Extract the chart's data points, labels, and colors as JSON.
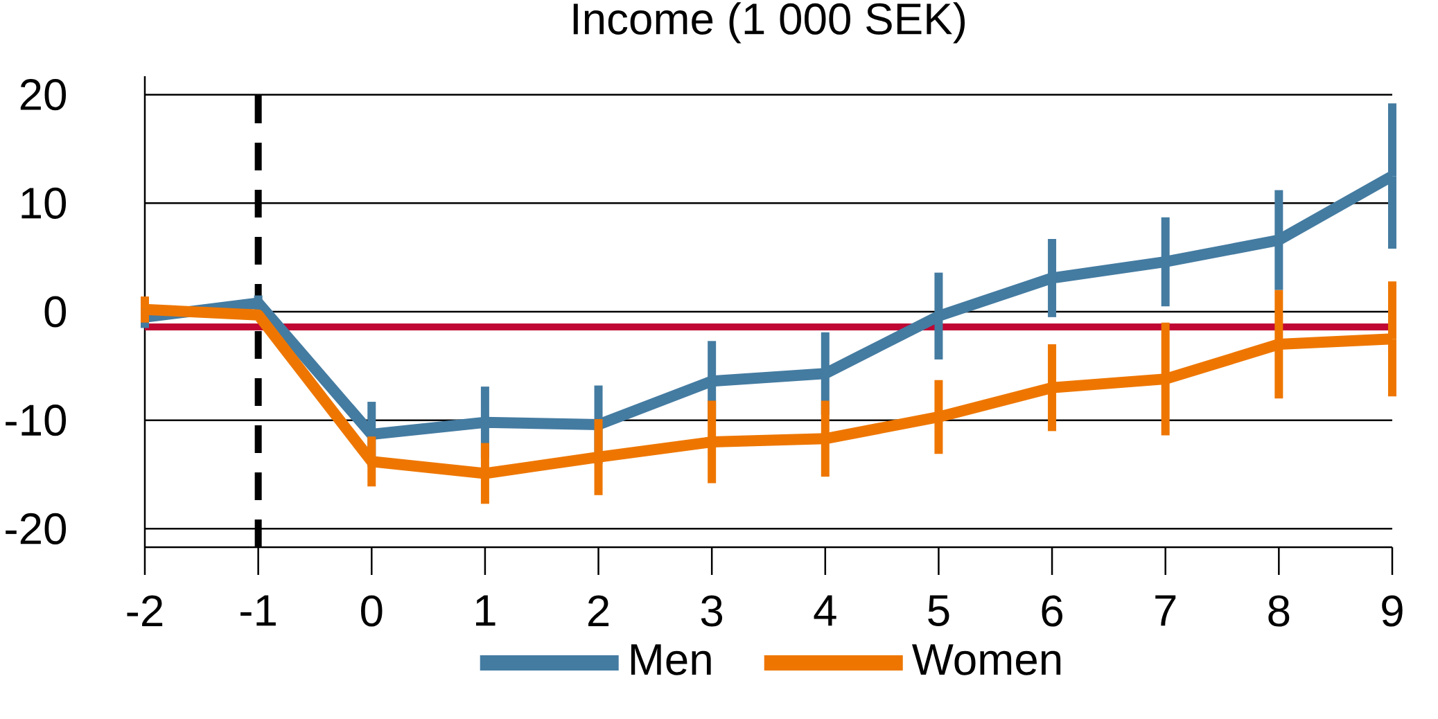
{
  "chart_data": {
    "type": "line",
    "title": "Income (1 000 SEK)",
    "x": [
      -2,
      -1,
      0,
      1,
      2,
      3,
      4,
      5,
      6,
      7,
      8,
      9
    ],
    "series": [
      {
        "name": "Men",
        "color": "#447ba1",
        "values": [
          -0.5,
          0.8,
          -11.3,
          -10.2,
          -10.4,
          -6.4,
          -5.7,
          -0.4,
          3.1,
          4.6,
          6.6,
          12.5
        ],
        "errors": [
          1.0,
          0.7,
          3.0,
          3.3,
          3.6,
          3.7,
          3.8,
          4.0,
          3.6,
          4.1,
          4.6,
          6.7
        ]
      },
      {
        "name": "Women",
        "color": "#ee7600",
        "values": [
          0.2,
          -0.3,
          -13.8,
          -14.9,
          -13.4,
          -12.0,
          -11.7,
          -9.7,
          -7.0,
          -6.2,
          -3.0,
          -2.5
        ],
        "errors": [
          1.2,
          null,
          2.3,
          2.8,
          3.5,
          3.8,
          3.5,
          3.4,
          4.0,
          5.2,
          5.0,
          5.3
        ]
      }
    ],
    "xlim": [
      -2,
      9
    ],
    "ylim": [
      -21.7,
      21.7
    ],
    "xticks": [
      -2,
      -1,
      0,
      1,
      2,
      3,
      4,
      5,
      6,
      7,
      8,
      9
    ],
    "yticks": [
      -20,
      -10,
      0,
      10,
      20
    ],
    "grid": "y",
    "legend": "bottom",
    "ref_lines": [
      {
        "axis": "y",
        "value": -1.4,
        "color": "#c00633",
        "line_style": "solid"
      },
      {
        "axis": "x",
        "value": -1,
        "color": "#000000",
        "line_style": "dashed"
      }
    ]
  }
}
